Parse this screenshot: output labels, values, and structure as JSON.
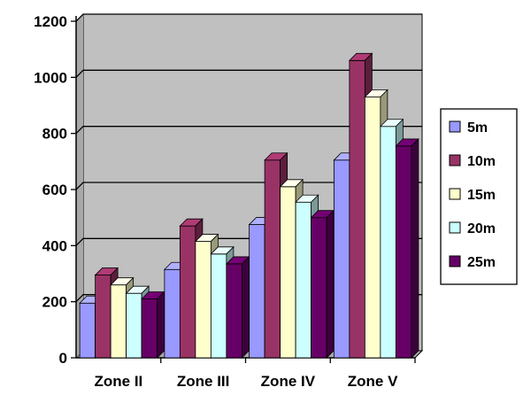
{
  "chart_data": {
    "type": "bar",
    "style": "3d-clustered-column",
    "categories": [
      "Zone II",
      "Zone III",
      "Zone IV",
      "Zone V"
    ],
    "series": [
      {
        "name": "5m",
        "values": [
          195,
          315,
          475,
          705
        ],
        "color": "#9999ff"
      },
      {
        "name": "10m",
        "values": [
          295,
          470,
          705,
          1060
        ],
        "color": "#993366"
      },
      {
        "name": "15m",
        "values": [
          260,
          415,
          610,
          930
        ],
        "color": "#ffffcc"
      },
      {
        "name": "20m",
        "values": [
          230,
          370,
          555,
          825
        ],
        "color": "#ccffff"
      },
      {
        "name": "25m",
        "values": [
          210,
          335,
          500,
          755
        ],
        "color": "#660066"
      }
    ],
    "yticks": [
      0,
      200,
      400,
      600,
      800,
      1000,
      1200
    ],
    "ylim": [
      0,
      1200
    ],
    "grid": true,
    "plot_background": "#c0c0c0",
    "legend_position": "right"
  }
}
